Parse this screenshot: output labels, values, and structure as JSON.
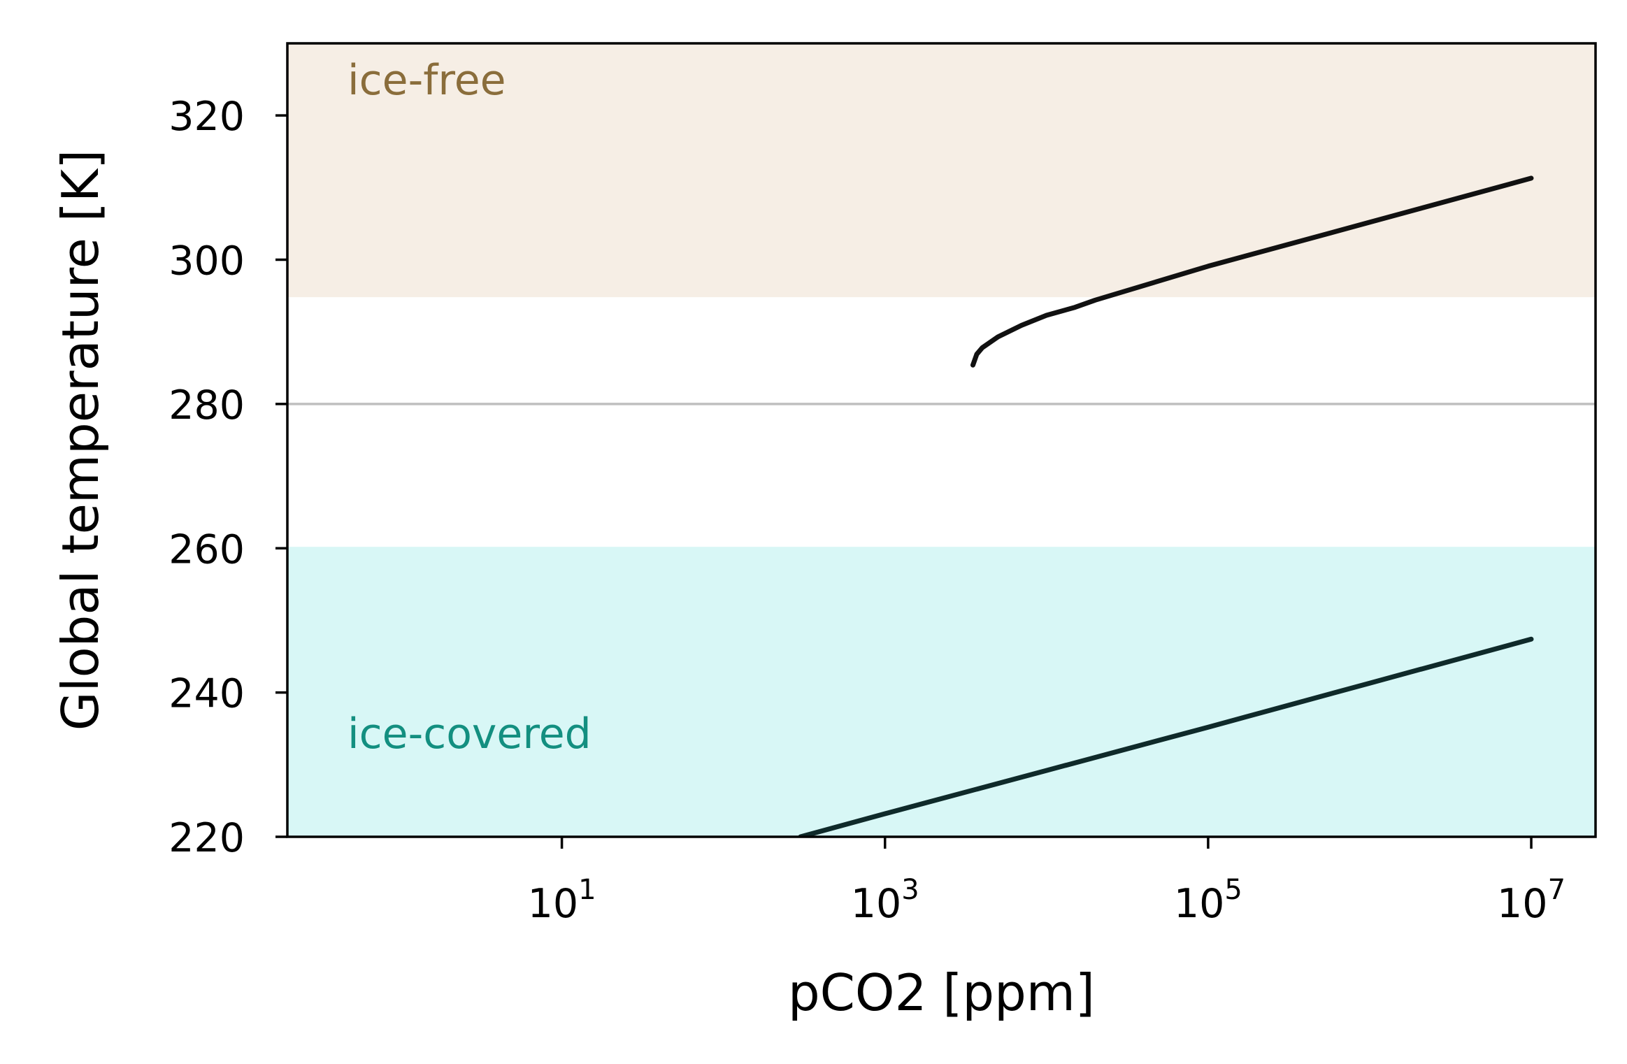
{
  "chart_data": {
    "type": "line",
    "xlabel": "pCO2 [ppm]",
    "ylabel": "Global temperature [K]",
    "xscale": "log",
    "xlim": [
      0.2,
      25000000
    ],
    "ylim": [
      220,
      330
    ],
    "x_ticks": [
      {
        "base": "10",
        "exp": "1",
        "value": 10
      },
      {
        "base": "10",
        "exp": "3",
        "value": 1000
      },
      {
        "base": "10",
        "exp": "5",
        "value": 100000
      },
      {
        "base": "10",
        "exp": "7",
        "value": 10000000
      }
    ],
    "y_ticks": [
      "220",
      "240",
      "260",
      "280",
      "300",
      "320"
    ],
    "grid": false,
    "regions": [
      {
        "label": "ice-free",
        "y_from": 295,
        "y_to": 330,
        "color": "#f6eee5",
        "label_color": "#8a6d3b"
      },
      {
        "label": "ice-covered",
        "y_from": 220,
        "y_to": 260,
        "color": "#d8f7f6",
        "label_color": "#138f80"
      }
    ],
    "reference_lines": [
      {
        "y": 280,
        "color": "#bfbfbf"
      }
    ],
    "series": [
      {
        "color": "#111111",
        "points": [
          [
            3500,
            285.4
          ],
          [
            3700,
            286.9
          ],
          [
            4000,
            287.8
          ],
          [
            5000,
            289.3
          ],
          [
            7000,
            290.9
          ],
          [
            10000,
            292.3
          ],
          [
            15000,
            293.4
          ],
          [
            20000,
            294.4
          ],
          [
            100000,
            299.1
          ],
          [
            1000000,
            305.2
          ],
          [
            10000000,
            311.3
          ]
        ]
      },
      {
        "color": "#0f2a2a",
        "points": [
          [
            300,
            220.0
          ],
          [
            1000,
            223.2
          ],
          [
            10000,
            229.2
          ],
          [
            100000,
            235.2
          ],
          [
            1000000,
            241.3
          ],
          [
            10000000,
            247.4
          ]
        ]
      }
    ]
  }
}
